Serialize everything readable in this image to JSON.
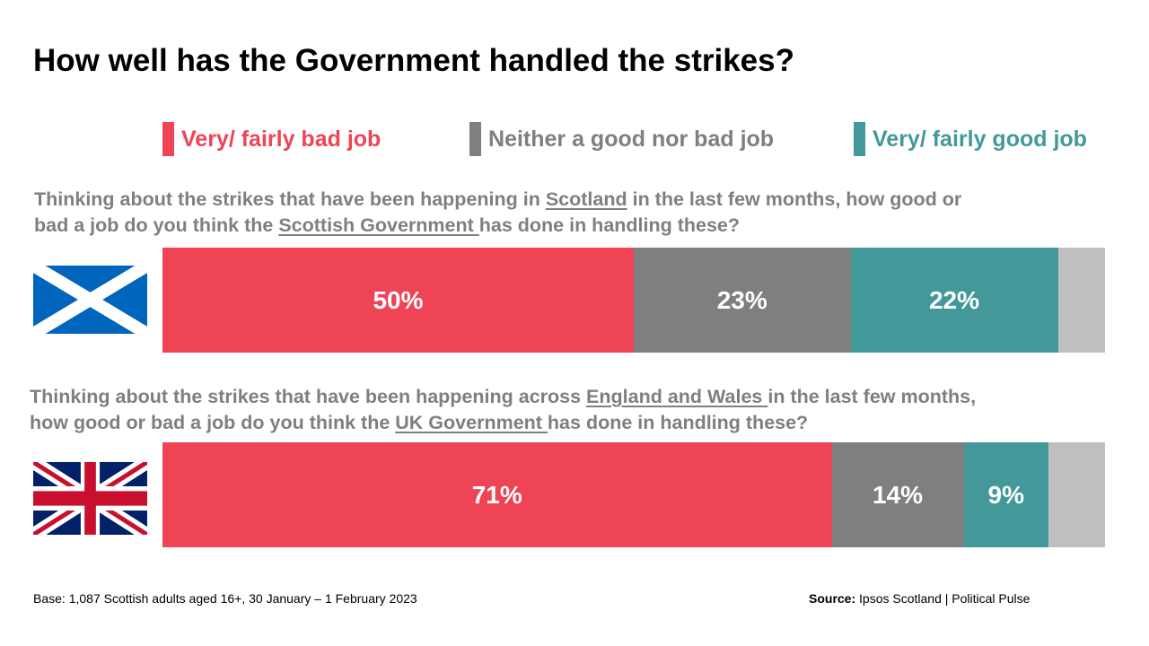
{
  "title": "How well has the Government handled the strikes?",
  "legend": [
    {
      "label": "Very/ fairly bad job",
      "color": "#ef4356"
    },
    {
      "label": "Neither a good nor bad job",
      "color": "#7f7f7f"
    },
    {
      "label": "Very/ fairly good job",
      "color": "#43999a"
    }
  ],
  "questions": [
    {
      "parts": [
        {
          "text": "Thinking about the strikes that have been happening in ",
          "u": false
        },
        {
          "text": "Scotland",
          "u": true
        },
        {
          "text": " in the last few months, how good or",
          "u": false
        },
        {
          "br": true
        },
        {
          "text": "bad a job do you think the ",
          "u": false
        },
        {
          "text": "Scottish Government ",
          "u": true
        },
        {
          "text": "has done in handling these?",
          "u": false
        }
      ]
    },
    {
      "parts": [
        {
          "text": "Thinking about the strikes that have been happening across ",
          "u": false
        },
        {
          "text": "England and Wales ",
          "u": true
        },
        {
          "text": "in the last few months,",
          "u": false
        },
        {
          "br": true
        },
        {
          "text": "how good or bad a job do you think the ",
          "u": false
        },
        {
          "text": "UK Government ",
          "u": true
        },
        {
          "text": "has done in handling these?",
          "u": false
        }
      ]
    }
  ],
  "chart_data": {
    "type": "bar",
    "orientation": "horizontal",
    "stacked": true,
    "scale_max": 100,
    "categories": [
      "Scottish Government",
      "UK Government"
    ],
    "series": [
      {
        "name": "Very/ fairly bad job",
        "values": [
          50,
          71
        ],
        "labels": [
          "50%",
          "71%"
        ],
        "color": "#ef4356"
      },
      {
        "name": "Neither a good nor bad job",
        "values": [
          23,
          14
        ],
        "labels": [
          "23%",
          "14%"
        ],
        "color": "#7f7f7f"
      },
      {
        "name": "Very/ fairly good job",
        "values": [
          22,
          9
        ],
        "labels": [
          "22%",
          "9%"
        ],
        "color": "#43999a"
      },
      {
        "values": [
          5,
          6
        ],
        "labels": [
          "",
          ""
        ],
        "color": "#bfbfbf"
      }
    ]
  },
  "base": "Base: 1,087 Scottish adults aged 16+, 30 January – 1 February 2023",
  "source": {
    "label": "Source:",
    "text": " Ipsos Scotland | Political Pulse"
  }
}
